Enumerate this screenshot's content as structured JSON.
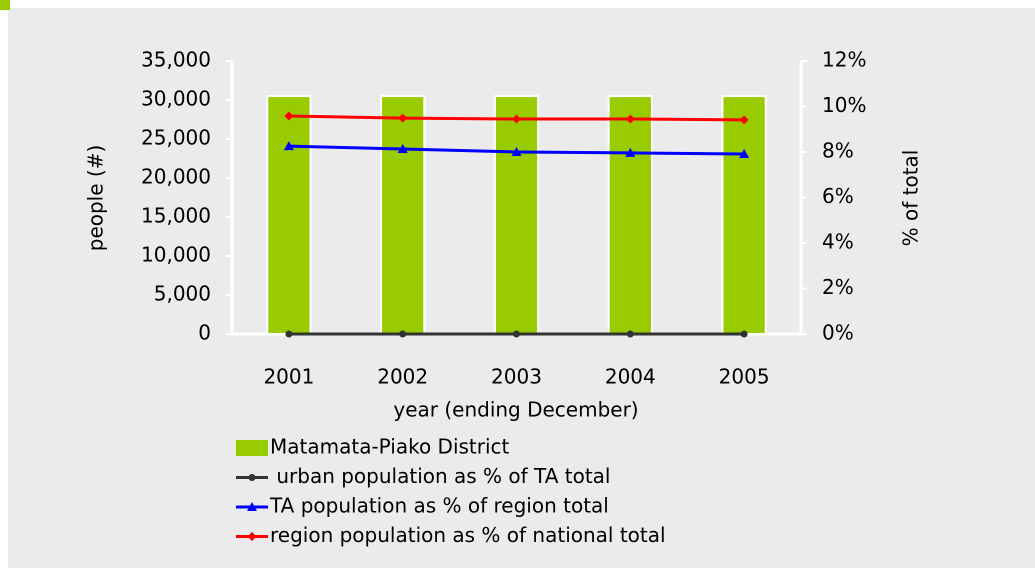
{
  "chart_data": {
    "type": "bar",
    "categories": [
      "2001",
      "2002",
      "2003",
      "2004",
      "2005"
    ],
    "xlabel": "year (ending December)",
    "ylabel": "people (#)",
    "y2label": "% of total",
    "ylim": [
      0,
      35000
    ],
    "yticks": [
      0,
      {
        "value": 5000,
        "label": "5,000"
      },
      {
        "value": 10000,
        "label": "10,000"
      },
      {
        "value": 15000,
        "label": "15,000"
      },
      {
        "value": 20000,
        "label": "20,000"
      },
      {
        "value": 25000,
        "label": "25,000"
      },
      {
        "value": 30000,
        "label": "30,000"
      },
      {
        "value": 35000,
        "label": "35,000"
      }
    ],
    "y2lim": [
      0,
      12
    ],
    "y2ticks": [
      {
        "value": 0,
        "label": "0%"
      },
      {
        "value": 2,
        "label": "2%"
      },
      {
        "value": 4,
        "label": "4%"
      },
      {
        "value": 6,
        "label": "6%"
      },
      {
        "value": 8,
        "label": "8%"
      },
      {
        "value": 10,
        "label": "10%"
      },
      {
        "value": 12,
        "label": "12%"
      }
    ],
    "series": [
      {
        "name": "Matamata-Piako District",
        "type": "bar",
        "color": "#99cc00",
        "values": [
          30500,
          30500,
          30500,
          30500,
          30500
        ]
      },
      {
        "name": " urban population as % of TA total",
        "type": "line",
        "axis": "y2",
        "marker": "circle",
        "color": "#333333",
        "values": [
          0,
          0,
          0,
          0,
          0
        ]
      },
      {
        "name": "TA population as % of region total",
        "type": "line",
        "axis": "y2",
        "marker": "triangle",
        "color": "#0000ff",
        "values": [
          8.26,
          8.13,
          8.0,
          7.96,
          7.91
        ]
      },
      {
        "name": "region population as % of national total",
        "type": "line",
        "axis": "y2",
        "marker": "diamond",
        "color": "#ff0000",
        "values": [
          9.58,
          9.49,
          9.45,
          9.45,
          9.41
        ]
      }
    ]
  }
}
